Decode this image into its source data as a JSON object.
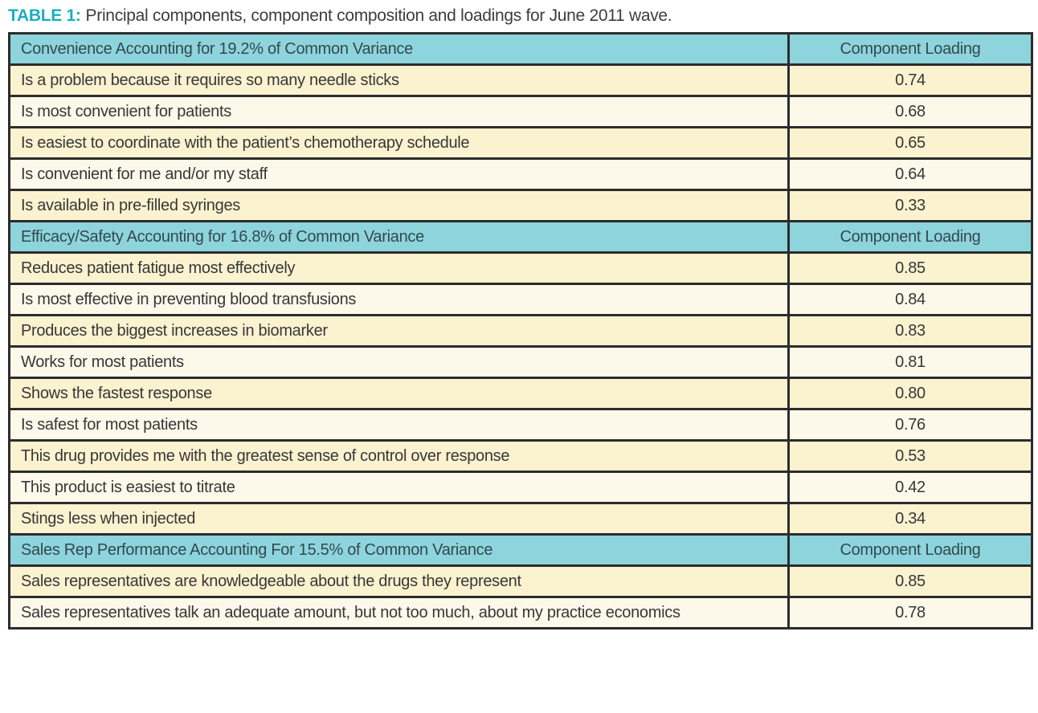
{
  "caption": {
    "label": "TABLE 1:",
    "text": "Principal components, component composition and loadings for June 2011 wave."
  },
  "colors": {
    "caption_accent": "#1bafbe",
    "section_header_bg": "#8ed4dc",
    "row_dark_bg": "#fbf2d0",
    "row_light_bg": "#fdf9ea",
    "border": "#2c2c2c",
    "text": "#373737"
  },
  "table": {
    "loading_header": "Component Loading",
    "sections": [
      {
        "header": "Convenience Accounting for 19.2% of Common Variance",
        "rows": [
          {
            "item": "Is a problem because it requires so many needle sticks",
            "loading": "0.74"
          },
          {
            "item": "Is most convenient for patients",
            "loading": "0.68"
          },
          {
            "item": "Is easiest to coordinate with the patient’s chemotherapy schedule",
            "loading": "0.65"
          },
          {
            "item": "Is convenient for me and/or my staff",
            "loading": "0.64"
          },
          {
            "item": "Is available in pre-filled syringes",
            "loading": "0.33"
          }
        ]
      },
      {
        "header": "Efficacy/Safety Accounting for 16.8% of Common Variance",
        "rows": [
          {
            "item": "Reduces patient fatigue most effectively",
            "loading": "0.85"
          },
          {
            "item": "Is most effective in preventing blood transfusions",
            "loading": "0.84"
          },
          {
            "item": "Produces the biggest increases in biomarker",
            "loading": "0.83"
          },
          {
            "item": "Works for most patients",
            "loading": "0.81"
          },
          {
            "item": "Shows the fastest response",
            "loading": "0.80"
          },
          {
            "item": "Is safest for most patients",
            "loading": "0.76"
          },
          {
            "item": "This drug provides me with the greatest sense of control over response",
            "loading": "0.53"
          },
          {
            "item": "This product is easiest to titrate",
            "loading": "0.42"
          },
          {
            "item": "Stings less when injected",
            "loading": "0.34"
          }
        ]
      },
      {
        "header": "Sales Rep Performance Accounting For 15.5% of Common Variance",
        "rows": [
          {
            "item": "Sales representatives are knowledgeable about the drugs they represent",
            "loading": "0.85"
          },
          {
            "item": "Sales representatives talk an adequate amount, but not too much, about my practice economics",
            "loading": "0.78"
          }
        ]
      }
    ]
  }
}
